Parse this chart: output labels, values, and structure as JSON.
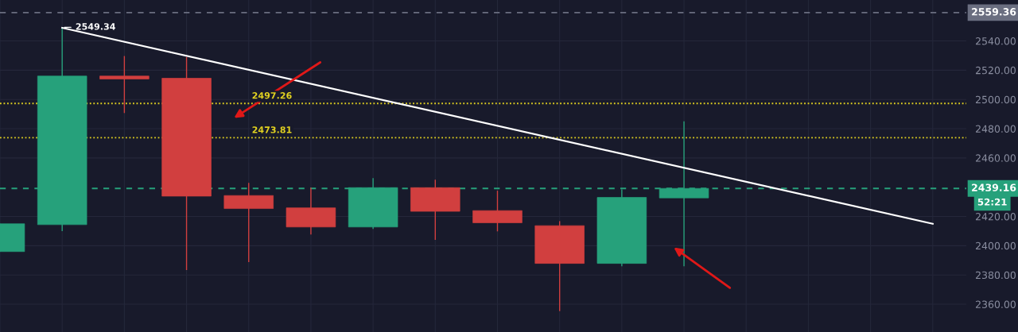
{
  "chart_data": {
    "type": "candlestick",
    "categories": [
      null,
      null,
      null,
      null,
      null,
      null,
      null,
      null,
      null,
      null,
      null,
      null,
      null,
      null,
      null,
      null
    ],
    "ohlc": [
      [
        2396,
        2415,
        2396,
        2415
      ],
      [
        2414.4,
        2549.34,
        2410,
        2516
      ],
      [
        2516,
        2529.7,
        2490.7,
        2514
      ],
      [
        2514.5,
        2529,
        2383.4,
        2433.9
      ],
      [
        2434.3,
        2443,
        2388.8,
        2425.4
      ],
      [
        2425.9,
        2439.7,
        2407.6,
        2412.8
      ],
      [
        2412.8,
        2446.2,
        2411.5,
        2439.7
      ],
      [
        2439.7,
        2445.2,
        2404,
        2423.5
      ],
      [
        2424,
        2437.6,
        2409.8,
        2415.7
      ],
      [
        2413.7,
        2416.8,
        2355.3,
        2387.9
      ],
      [
        2387.9,
        2438.5,
        2386,
        2433
      ],
      [
        2432.7,
        2485.1,
        2386,
        2439.16
      ],
      null,
      null,
      null,
      null
    ],
    "colors": [
      "#26a17b",
      "#26a17b",
      "#d13f3f",
      "#d13f3f",
      "#d13f3f",
      "#d13f3f",
      "#26a17b",
      "#d13f3f",
      "#d13f3f",
      "#d13f3f",
      "#26a17b",
      "#26a17b",
      null,
      null,
      null,
      null
    ],
    "series": [
      {
        "type": "line",
        "color": "#ffffff",
        "values": [
          null,
          2549,
          null,
          null,
          null,
          null,
          null,
          null,
          null,
          null,
          null,
          null,
          null,
          null,
          null,
          2415
        ]
      }
    ],
    "ylim": [
      2341,
      2568
    ],
    "yticks": [
      {
        "value": 2360,
        "label": "2360.00"
      },
      {
        "value": 2380,
        "label": "2380.00"
      },
      {
        "value": 2400,
        "label": "2400.00"
      },
      {
        "value": 2420,
        "label": "2420.00"
      },
      {
        "value": 2460,
        "label": "2460.00"
      },
      {
        "value": 2480,
        "label": "2480.00"
      },
      {
        "value": 2500,
        "label": "2500.00"
      },
      {
        "value": 2520,
        "label": "2520.00"
      },
      {
        "value": 2540,
        "label": "2540.00"
      }
    ],
    "ref_lines": [
      {
        "axis": "y",
        "value": 2497.26,
        "label": "2497.26",
        "color": "#e0d020",
        "line_style": "dotted"
      },
      {
        "axis": "y",
        "value": 2473.81,
        "label": "2473.81",
        "color": "#e0d020",
        "line_style": "dotted"
      },
      {
        "axis": "y",
        "value": 2439.16,
        "label": "2439.16",
        "color": "#26a17b",
        "line_style": "dashed"
      },
      {
        "axis": "y",
        "value": 2559.36,
        "label": "2559.36",
        "color": "#6a6e80",
        "line_style": "dashed"
      }
    ],
    "annotations": [
      "2549.34",
      "52:21"
    ],
    "grid": true,
    "tick_labels": "y"
  }
}
